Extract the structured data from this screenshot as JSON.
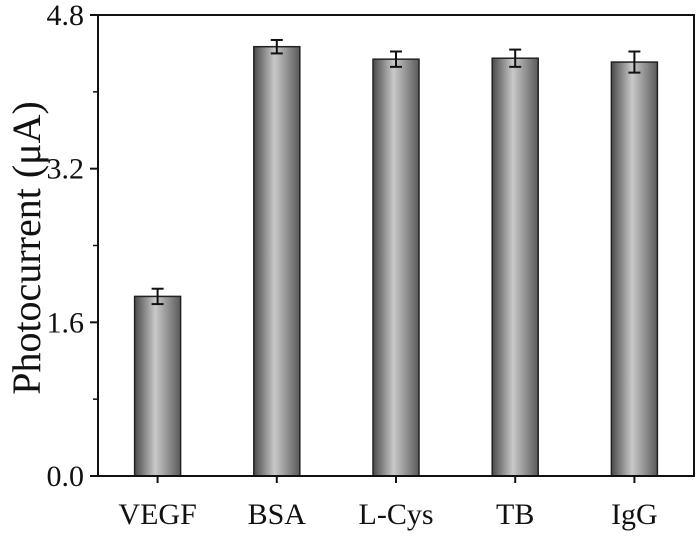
{
  "chart_data": {
    "type": "bar",
    "title": "",
    "xlabel": "",
    "ylabel": "Photocurrent (μA)",
    "categories": [
      "VEGF",
      "BSA",
      "L-Cys",
      "TB",
      "IgG"
    ],
    "values": [
      1.87,
      4.47,
      4.34,
      4.35,
      4.31
    ],
    "errors": [
      0.08,
      0.07,
      0.08,
      0.09,
      0.11
    ],
    "ylim": [
      0.0,
      4.8
    ],
    "yticks": [
      "0.0",
      "1.6",
      "3.2",
      "4.8"
    ],
    "grid": false,
    "legend": "none",
    "bar_color": "#8a8a8a"
  }
}
